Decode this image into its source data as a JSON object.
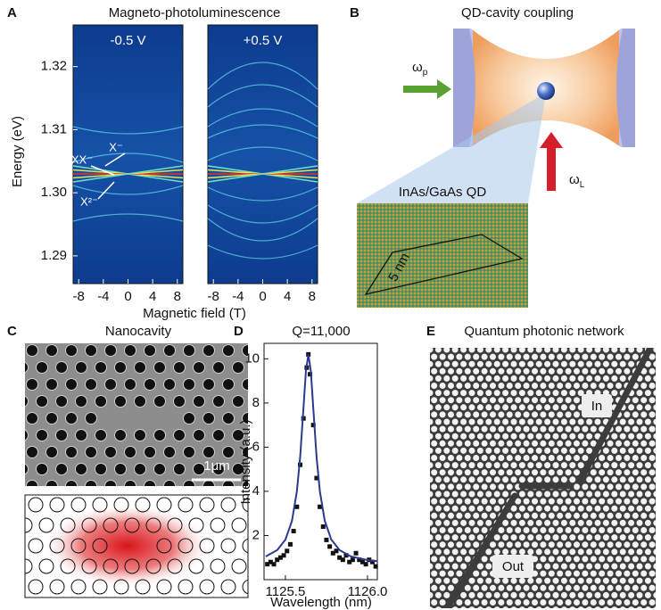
{
  "figure": {
    "panel_labels": [
      "A",
      "B",
      "C",
      "D",
      "E"
    ]
  },
  "chart_data": [
    {
      "type": "spectrum-map",
      "title": "Magneto-photoluminescence",
      "xlabel": "Magnetic field (T)",
      "ylabel": "Energy (eV)",
      "panels": [
        "-0.5 V",
        "+0.5 V"
      ],
      "xlim": [
        -8.9,
        8.9
      ],
      "xticks": [
        -8,
        -4,
        0,
        4,
        8
      ],
      "ylim": [
        1.2856,
        1.3266
      ],
      "yticks": [
        1.29,
        {
          "value": 1.3,
          "label": "1.30"
        },
        1.31,
        1.32
      ],
      "annotations": [
        "X⁻",
        "XX⁻",
        "X²⁻"
      ]
    },
    {
      "type": "scatter-fit",
      "title": "Q=11,000",
      "xlabel": "Wavelength (nm)",
      "ylabel": "Intensity (a.u.)",
      "xlim": [
        1125.37,
        1126.06
      ],
      "xticks": [
        1125.5,
        {
          "value": 1126,
          "label": "1126.0"
        }
      ],
      "ylim": [
        0,
        10.7
      ],
      "yticks": [
        2,
        4,
        6,
        8,
        10
      ],
      "series": [
        {
          "mode": "markers",
          "color": "#111111",
          "x": [
            1125.39,
            1125.41,
            1125.43,
            1125.45,
            1125.47,
            1125.49,
            1125.51,
            1125.53,
            1125.55,
            1125.57,
            1125.59,
            1125.61,
            1125.63,
            1125.64,
            1125.65,
            1125.67,
            1125.69,
            1125.71,
            1125.73,
            1125.75,
            1125.77,
            1125.79,
            1125.81,
            1125.83,
            1125.85,
            1125.87,
            1125.89,
            1125.91,
            1125.93,
            1125.95,
            1125.97,
            1125.99,
            1126.01,
            1126.03,
            1126.05
          ],
          "values": [
            0.7,
            0.8,
            0.7,
            0.9,
            1.0,
            1.1,
            1.3,
            1.6,
            2.2,
            3.3,
            5.2,
            7.3,
            9.6,
            10.2,
            9.3,
            7.0,
            4.6,
            3.3,
            2.4,
            1.8,
            1.5,
            1.2,
            1.3,
            1.0,
            0.9,
            1.1,
            0.8,
            0.9,
            1.2,
            0.9,
            0.8,
            0.7,
            0.9,
            0.8,
            0.6
          ]
        },
        {
          "mode": "line",
          "color": "#2b3a8f",
          "x": [
            1125.38,
            1125.45,
            1125.5,
            1125.54,
            1125.57,
            1125.59,
            1125.61,
            1125.625,
            1125.64,
            1125.655,
            1125.67,
            1125.69,
            1125.71,
            1125.74,
            1125.78,
            1125.83,
            1125.9,
            1126.0,
            1126.06
          ],
          "values": [
            1.05,
            1.34,
            1.81,
            2.66,
            4.0,
            5.55,
            7.76,
            9.44,
            10.2,
            9.44,
            7.76,
            5.55,
            4.0,
            2.66,
            1.81,
            1.34,
            1.05,
            0.89,
            0.84
          ]
        }
      ]
    }
  ],
  "panel_b": {
    "title": "QD-cavity coupling",
    "pump": {
      "symbol": "ω",
      "subscript": "p"
    },
    "laser": {
      "symbol": "ω",
      "subscript": "L"
    },
    "inset_title": "InAs/GaAs QD",
    "scale": "5 nm"
  },
  "panel_c": {
    "title": "Nanocavity",
    "scale_bar": "1μm"
  },
  "panel_e": {
    "title": "Quantum photonic network",
    "input": "In",
    "output": "Out"
  }
}
